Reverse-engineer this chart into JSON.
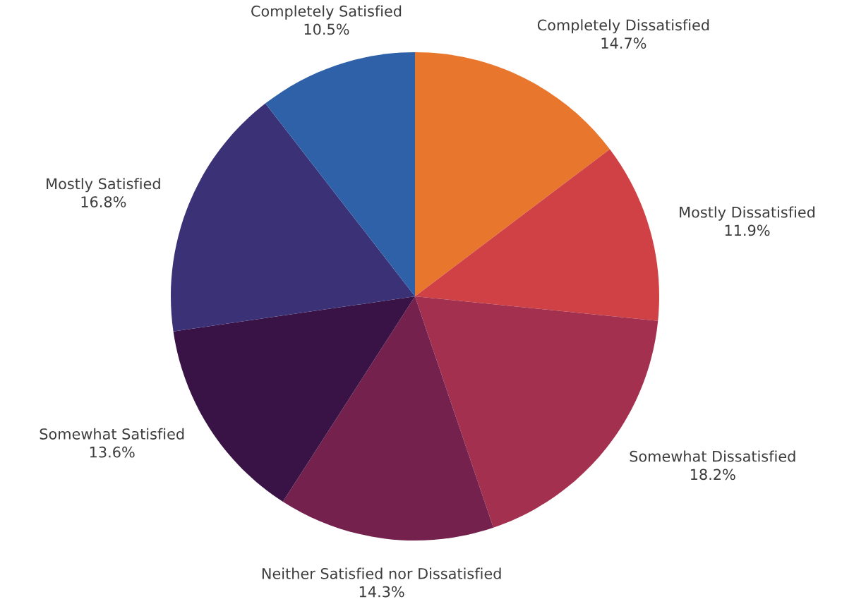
{
  "chart_data": {
    "type": "pie",
    "categories": [
      "Completely Dissatisfied",
      "Mostly Dissatisfied",
      "Somewhat Dissatisfied",
      "Neither Satisfied nor Dissatisfied",
      "Somewhat Satisfied",
      "Mostly Satisfied",
      "Completely Satisfied"
    ],
    "values": [
      14.7,
      11.9,
      18.2,
      14.3,
      13.6,
      16.8,
      10.5
    ],
    "value_labels": [
      "14.7%",
      "11.9%",
      "18.2%",
      "14.3%",
      "13.6%",
      "16.8%",
      "10.5%"
    ],
    "colors": [
      "#e8762d",
      "#d04145",
      "#a3304e",
      "#74214e",
      "#3a1346",
      "#3b3177",
      "#2e61a8"
    ]
  }
}
